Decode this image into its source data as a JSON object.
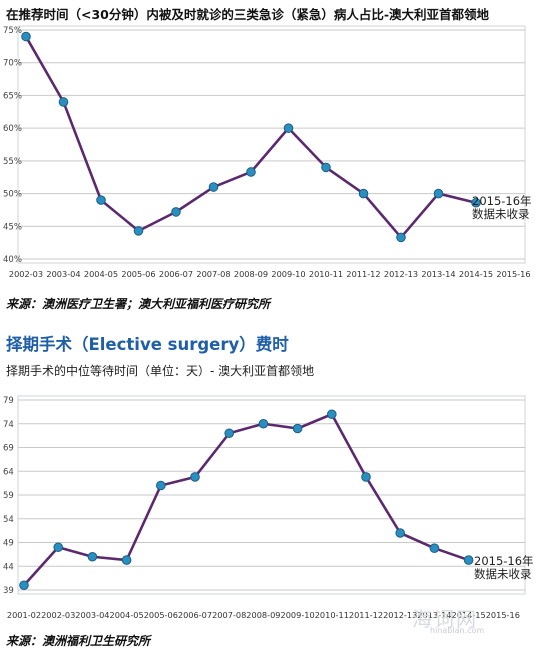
{
  "charts_text": {
    "chart1_title": "在推荐时间（<30分钟）内被及时就诊的三类急诊（紧急）病人占比-澳大利亚首都领地",
    "chart1_source": "来源：澳洲医疗卫生署；澳大利亚福利医疗研究所",
    "section_title": "择期手术（Elective surgery）费时",
    "chart2_subtitle": "择期手术的中位等待时间（单位：天）- 澳大利亚首都领地",
    "chart2_source": "来源：澳洲福利卫生研究所",
    "watermark": "海词网",
    "watermark_sub": "hinablan.com"
  },
  "chart_data": [
    {
      "type": "line",
      "title": "在推荐时间（<30分钟）内被及时就诊的三类急诊（紧急）病人占比-澳大利亚首都领地",
      "xlabel": "",
      "ylabel": "",
      "categories": [
        "2002-03",
        "2003-04",
        "2004-05",
        "2005-06",
        "2006-07",
        "2007-08",
        "2008-09",
        "2009-10",
        "2010-11",
        "2011-12",
        "2012-13",
        "2013-14",
        "2014-15",
        "2015-16"
      ],
      "series": [
        {
          "values": [
            74,
            64,
            49,
            44.3,
            47.2,
            51,
            53.3,
            60,
            54,
            50,
            43.3,
            50,
            48.6,
            null
          ]
        }
      ],
      "ylim": [
        40,
        75
      ],
      "yticks": [
        40,
        45,
        50,
        55,
        60,
        65,
        70,
        75
      ],
      "ytick_labels": [
        "40%",
        "45%",
        "50%",
        "55%",
        "60%",
        "65%",
        "70%",
        "75%"
      ],
      "annotation": [
        "2015-16年",
        "数据未收录"
      ],
      "grid": "horizontal",
      "line_color": "#5b2a6e",
      "marker_color": "#2a8fc0"
    },
    {
      "type": "line",
      "title": "择期手术的中位等待时间（单位：天）- 澳大利亚首都领地",
      "xlabel": "",
      "ylabel": "",
      "categories": [
        "2001-02",
        "2002-03",
        "2003-04",
        "2004-05",
        "2005-06",
        "2006-07",
        "2007-08",
        "2008-09",
        "2009-10",
        "2010-11",
        "2011-12",
        "2012-13",
        "2013-14",
        "2014-15",
        "2015-16"
      ],
      "series": [
        {
          "values": [
            40,
            48,
            46,
            45.3,
            61,
            62.8,
            72,
            74,
            73,
            76,
            62.8,
            51,
            47.8,
            45.3,
            null
          ]
        }
      ],
      "ylim": [
        39,
        79
      ],
      "yticks": [
        39,
        44,
        49,
        54,
        59,
        64,
        69,
        74,
        79
      ],
      "ytick_labels": [
        "39",
        "44",
        "49",
        "54",
        "59",
        "64",
        "69",
        "74",
        "79"
      ],
      "annotation": [
        "2015-16年",
        "数据未收录"
      ],
      "grid": "horizontal",
      "line_color": "#5b2a6e",
      "marker_color": "#2a8fc0"
    }
  ]
}
